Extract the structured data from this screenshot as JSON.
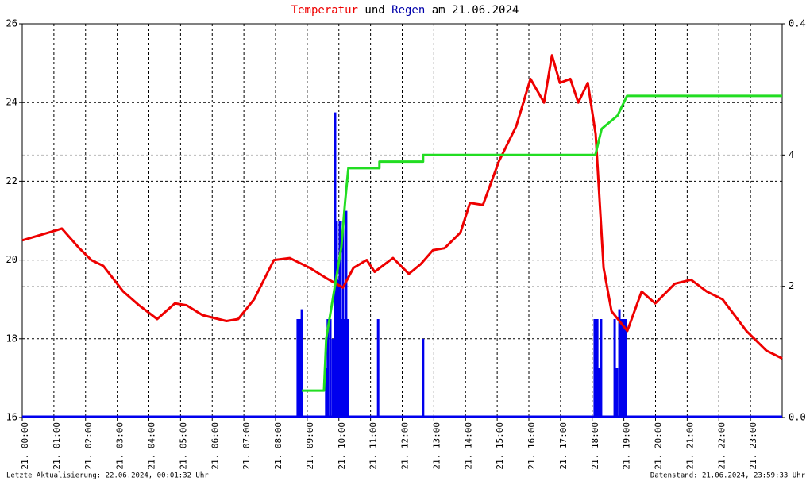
{
  "chart_data": {
    "type": "line",
    "title": [
      "Temperatur",
      "und",
      "Regen",
      "am 21.06.2024"
    ],
    "title_colors": [
      "#ee0000",
      "#000000",
      "#0000aa",
      "#000000"
    ],
    "footer_left": "Letzte Aktualisierung: 22.06.2024, 00:01:32 Uhr",
    "footer_right": "Datenstand: 21.06.2024, 23:59:33 Uhr",
    "xlim": [
      0,
      24
    ],
    "xticks": [
      {
        "value": 0,
        "label": "21. 00:00"
      },
      {
        "value": 1,
        "label": "21. 01:00"
      },
      {
        "value": 2,
        "label": "21. 02:00"
      },
      {
        "value": 3,
        "label": "21. 03:00"
      },
      {
        "value": 4,
        "label": "21. 04:00"
      },
      {
        "value": 5,
        "label": "21. 05:00"
      },
      {
        "value": 6,
        "label": "21. 06:00"
      },
      {
        "value": 7,
        "label": "21. 07:00"
      },
      {
        "value": 8,
        "label": "21. 08:00"
      },
      {
        "value": 9,
        "label": "21. 09:00"
      },
      {
        "value": 10,
        "label": "21. 10:00"
      },
      {
        "value": 11,
        "label": "21. 11:00"
      },
      {
        "value": 12,
        "label": "21. 12:00"
      },
      {
        "value": 13,
        "label": "21. 13:00"
      },
      {
        "value": 14,
        "label": "21. 14:00"
      },
      {
        "value": 15,
        "label": "21. 15:00"
      },
      {
        "value": 16,
        "label": "21. 16:00"
      },
      {
        "value": 17,
        "label": "21. 17:00"
      },
      {
        "value": 18,
        "label": "21. 18:00"
      },
      {
        "value": 19,
        "label": "21. 19:00"
      },
      {
        "value": 20,
        "label": "21. 20:00"
      },
      {
        "value": 21,
        "label": "21. 21:00"
      },
      {
        "value": 22,
        "label": "21. 22:00"
      },
      {
        "value": 23,
        "label": "21. 23:00"
      }
    ],
    "ylim": [
      16,
      26
    ],
    "yticks": [
      16,
      18,
      20,
      22,
      24,
      26
    ],
    "y2lim": [
      0,
      6
    ],
    "y2ticks": [
      {
        "value": 0,
        "label": "0.0"
      },
      2,
      4
    ],
    "y2color": "#00cc00",
    "y3lim": [
      0,
      0.4
    ],
    "y3ticks": [
      0.4
    ],
    "grid": true,
    "series": [
      {
        "type": "line",
        "color": "#ee0000",
        "axis": "y",
        "x": [
          0,
          1.05,
          1.25,
          1.8,
          2.18,
          2.56,
          3.19,
          3.69,
          4.26,
          4.82,
          5.19,
          5.69,
          6.45,
          6.82,
          7.32,
          7.95,
          8.45,
          9.08,
          9.58,
          10.13,
          10.46,
          10.88,
          11.13,
          11.71,
          12.21,
          12.59,
          12.97,
          13.34,
          13.84,
          14.14,
          14.55,
          15.05,
          15.6,
          16.05,
          16.48,
          16.73,
          16.98,
          17.31,
          17.56,
          17.86,
          18.11,
          18.36,
          18.61,
          19.11,
          19.56,
          19.99,
          20.61,
          21.12,
          21.62,
          22.12,
          22.87,
          23.5,
          24
        ],
        "values": [
          20.5,
          20.75,
          20.8,
          20.3,
          20.0,
          19.85,
          19.2,
          18.85,
          18.5,
          18.9,
          18.85,
          18.6,
          18.45,
          18.5,
          19.0,
          20.0,
          20.05,
          19.8,
          19.55,
          19.3,
          19.8,
          20.0,
          19.7,
          20.05,
          19.65,
          19.9,
          20.25,
          20.3,
          20.7,
          21.45,
          21.4,
          22.5,
          23.4,
          24.6,
          24.0,
          25.2,
          24.5,
          24.6,
          24.0,
          24.5,
          23.2,
          19.8,
          18.7,
          18.2,
          19.2,
          18.9,
          19.4,
          19.5,
          19.2,
          19.0,
          18.2,
          17.7,
          17.5
        ]
      },
      {
        "type": "line",
        "color": "#22dd22",
        "axis": "y2",
        "x": [
          8.83,
          9.53,
          9.6,
          10.08,
          10.2,
          10.3,
          11.28,
          11.28,
          12.66,
          12.66,
          18.1,
          18.3,
          18.8,
          19.1,
          24
        ],
        "values": [
          0.41,
          0.41,
          1.2,
          2.6,
          3.3,
          3.8,
          3.8,
          3.9,
          3.9,
          4.0,
          4.0,
          4.4,
          4.6,
          4.9,
          4.9
        ]
      },
      {
        "type": "bar",
        "color": "#0000ee",
        "axis": "y3",
        "x": [
          8.7,
          8.78,
          8.83,
          9.6,
          9.65,
          9.73,
          9.81,
          9.88,
          9.93,
          9.98,
          10.03,
          10.08,
          10.13,
          10.18,
          10.23,
          10.28,
          11.24,
          12.66,
          18.08,
          18.16,
          18.23,
          18.28,
          18.71,
          18.78,
          18.86,
          18.93,
          19.01,
          19.06
        ],
        "values": [
          0.1,
          0.1,
          0.11,
          0.05,
          0.1,
          0.1,
          0.08,
          0.31,
          0.2,
          0.14,
          0.2,
          0.1,
          0.2,
          0.1,
          0.21,
          0.1,
          0.1,
          0.08,
          0.1,
          0.1,
          0.05,
          0.1,
          0.1,
          0.05,
          0.11,
          0.1,
          0.1,
          0.1
        ]
      }
    ]
  }
}
